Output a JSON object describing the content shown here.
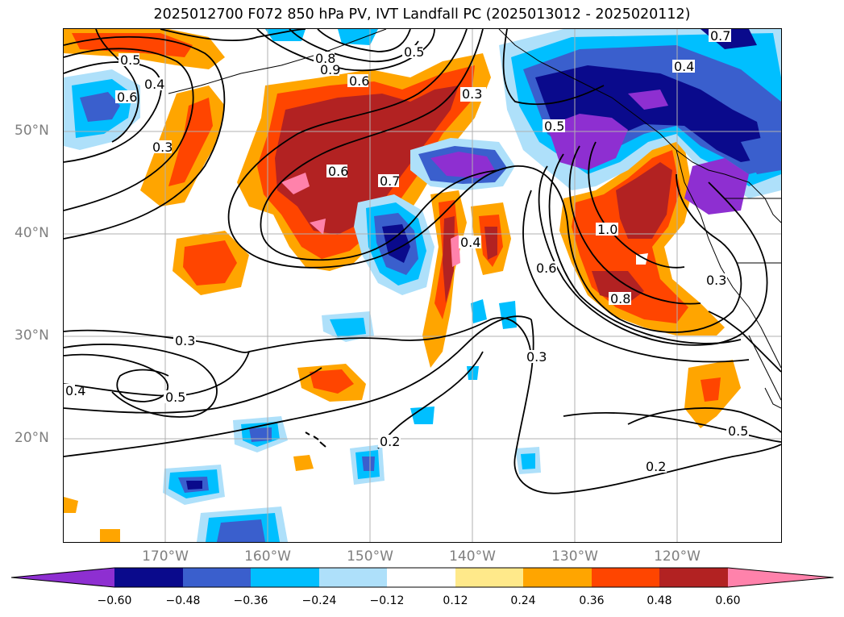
{
  "title": "2025012700 F072 850 hPa PV, IVT Landfall PC (2025013012 - 2025020112)",
  "map": {
    "latitude_labels": [
      "50°N",
      "40°N",
      "30°N",
      "20°N"
    ],
    "longitude_labels": [
      "170°W",
      "160°W",
      "150°W",
      "140°W",
      "130°W",
      "120°W"
    ],
    "contour_labels": [
      "0.5",
      "0.4",
      "0.6",
      "0.3",
      "0.9",
      "0.8",
      "0.6",
      "0.5",
      "0.3",
      "0.6",
      "0.7",
      "0.5",
      "0.4",
      "1.0",
      "0.6",
      "0.8",
      "0.3",
      "0.3",
      "0.5",
      "0.3",
      "0.2",
      "0.2",
      "0.5",
      "0.4",
      "0.7",
      "0.4"
    ],
    "shading_colors": {
      "neg_060": "#8e2fd1",
      "neg_048": "#0a0a8c",
      "neg_036": "#3a5fcd",
      "neg_024": "#00bfff",
      "neg_012": "#aee0fa",
      "pos_012": "#ffe98a",
      "pos_024": "#ffa500",
      "pos_036": "#ff4500",
      "pos_048": "#b22222",
      "pos_060": "#ff82ab"
    }
  },
  "colorbar": {
    "colors": [
      "#8e2fd1",
      "#0a0a8c",
      "#3a5fcd",
      "#00bfff",
      "#aee0fa",
      "#ffffff",
      "#ffe98a",
      "#ffa500",
      "#ff4500",
      "#b22222",
      "#ff82ab"
    ],
    "tick_labels": [
      "−0.60",
      "−0.48",
      "−0.36",
      "−0.24",
      "−0.12",
      "0.12",
      "0.24",
      "0.36",
      "0.48",
      "0.60"
    ]
  }
}
